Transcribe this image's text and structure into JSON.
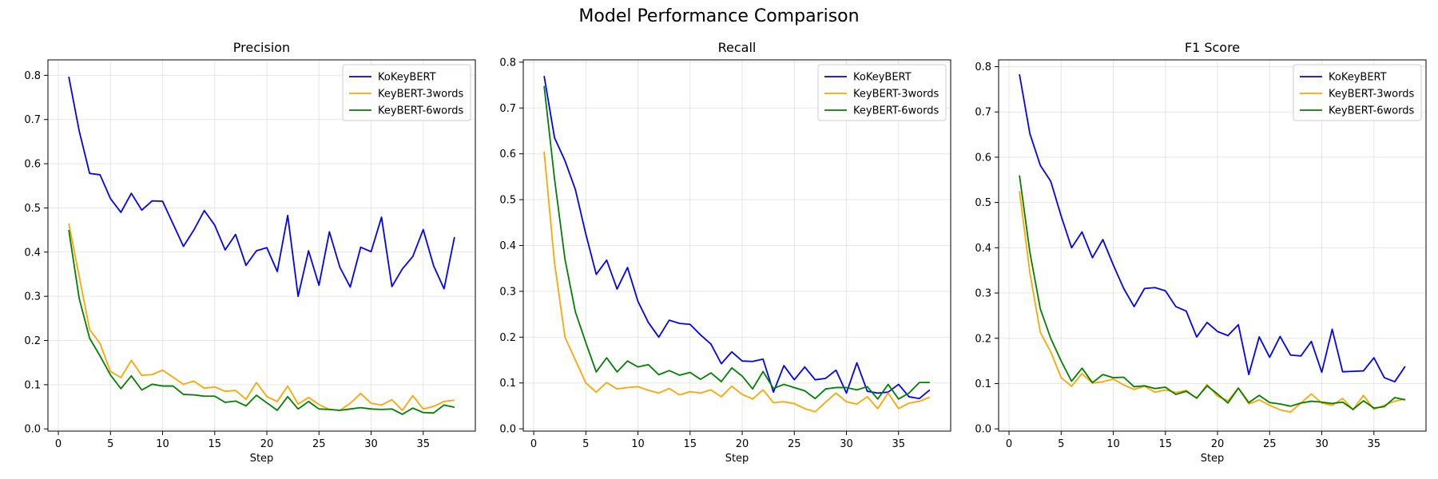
{
  "figure": {
    "title": "Model Performance Comparison"
  },
  "chart_data": [
    {
      "type": "line",
      "title": "Precision",
      "xlabel": "Step",
      "ylabel": "",
      "xlim": [
        -1,
        40
      ],
      "ylim": [
        -0.005,
        0.835
      ],
      "xticks": [
        0,
        5,
        10,
        15,
        20,
        25,
        30,
        35
      ],
      "yticks": [
        0.0,
        0.1,
        0.2,
        0.3,
        0.4,
        0.5,
        0.6,
        0.7,
        0.8
      ],
      "grid": true,
      "legend": "top-right",
      "x": [
        1,
        2,
        3,
        4,
        5,
        6,
        7,
        8,
        9,
        10,
        11,
        12,
        13,
        14,
        15,
        16,
        17,
        18,
        19,
        20,
        21,
        22,
        23,
        24,
        25,
        26,
        27,
        28,
        29,
        30,
        31,
        32,
        33,
        34,
        35,
        36,
        37,
        38
      ],
      "series": [
        {
          "name": "KoKeyBERT",
          "color": "#0000ff",
          "values": [
            0.797,
            0.674,
            0.578,
            0.575,
            0.521,
            0.49,
            0.533,
            0.495,
            0.516,
            0.515,
            0.464,
            0.413,
            0.45,
            0.494,
            0.461,
            0.405,
            0.44,
            0.37,
            0.403,
            0.41,
            0.356,
            0.483,
            0.3,
            0.403,
            0.325,
            0.446,
            0.366,
            0.321,
            0.411,
            0.401,
            0.479,
            0.322,
            0.362,
            0.39,
            0.451,
            0.369,
            0.317,
            0.434
          ]
        },
        {
          "name": "KeyBERT-3words",
          "color": "#ffa500",
          "values": [
            0.465,
            0.345,
            0.225,
            0.193,
            0.13,
            0.116,
            0.155,
            0.121,
            0.123,
            0.133,
            0.117,
            0.101,
            0.108,
            0.092,
            0.095,
            0.085,
            0.087,
            0.067,
            0.105,
            0.073,
            0.062,
            0.097,
            0.056,
            0.071,
            0.055,
            0.044,
            0.042,
            0.058,
            0.08,
            0.058,
            0.054,
            0.066,
            0.042,
            0.075,
            0.045,
            0.051,
            0.062,
            0.065
          ]
        },
        {
          "name": "KeyBERT-6words",
          "color": "#008000",
          "values": [
            0.45,
            0.295,
            0.205,
            0.165,
            0.122,
            0.091,
            0.12,
            0.088,
            0.101,
            0.097,
            0.097,
            0.078,
            0.077,
            0.074,
            0.074,
            0.06,
            0.063,
            0.052,
            0.076,
            0.059,
            0.042,
            0.073,
            0.045,
            0.062,
            0.045,
            0.044,
            0.042,
            0.045,
            0.048,
            0.045,
            0.044,
            0.045,
            0.033,
            0.047,
            0.037,
            0.036,
            0.054,
            0.049
          ]
        }
      ]
    },
    {
      "type": "line",
      "title": "Recall",
      "xlabel": "Step",
      "ylabel": "",
      "xlim": [
        -1,
        40
      ],
      "ylim": [
        -0.005,
        0.805
      ],
      "xticks": [
        0,
        5,
        10,
        15,
        20,
        25,
        30,
        35
      ],
      "yticks": [
        0.0,
        0.1,
        0.2,
        0.3,
        0.4,
        0.5,
        0.6,
        0.7,
        0.8
      ],
      "grid": true,
      "legend": "top-right",
      "x": [
        1,
        2,
        3,
        4,
        5,
        6,
        7,
        8,
        9,
        10,
        11,
        12,
        13,
        14,
        15,
        16,
        17,
        18,
        19,
        20,
        21,
        22,
        23,
        24,
        25,
        26,
        27,
        28,
        29,
        30,
        31,
        32,
        33,
        34,
        35,
        36,
        37,
        38
      ],
      "series": [
        {
          "name": "KoKeyBERT",
          "color": "#0000ff",
          "values": [
            0.77,
            0.635,
            0.585,
            0.522,
            0.425,
            0.337,
            0.368,
            0.305,
            0.352,
            0.278,
            0.232,
            0.2,
            0.237,
            0.23,
            0.228,
            0.205,
            0.185,
            0.142,
            0.168,
            0.148,
            0.147,
            0.152,
            0.08,
            0.138,
            0.107,
            0.135,
            0.107,
            0.11,
            0.128,
            0.078,
            0.144,
            0.082,
            0.078,
            0.08,
            0.097,
            0.07,
            0.066,
            0.085
          ]
        },
        {
          "name": "KeyBERT-3words",
          "color": "#ffa500",
          "values": [
            0.605,
            0.362,
            0.2,
            0.15,
            0.1,
            0.08,
            0.101,
            0.087,
            0.09,
            0.092,
            0.084,
            0.078,
            0.088,
            0.074,
            0.081,
            0.078,
            0.085,
            0.07,
            0.093,
            0.075,
            0.065,
            0.085,
            0.057,
            0.059,
            0.055,
            0.044,
            0.037,
            0.058,
            0.078,
            0.059,
            0.054,
            0.07,
            0.044,
            0.078,
            0.044,
            0.056,
            0.06,
            0.069
          ]
        },
        {
          "name": "KeyBERT-6words",
          "color": "#008000",
          "values": [
            0.748,
            0.545,
            0.37,
            0.255,
            0.188,
            0.124,
            0.155,
            0.124,
            0.148,
            0.135,
            0.14,
            0.118,
            0.127,
            0.117,
            0.123,
            0.108,
            0.122,
            0.103,
            0.133,
            0.115,
            0.087,
            0.125,
            0.088,
            0.097,
            0.09,
            0.083,
            0.066,
            0.087,
            0.09,
            0.09,
            0.085,
            0.092,
            0.065,
            0.097,
            0.065,
            0.078,
            0.101,
            0.101
          ]
        }
      ]
    },
    {
      "type": "line",
      "title": "F1 Score",
      "xlabel": "Step",
      "ylabel": "",
      "xlim": [
        -1,
        40
      ],
      "ylim": [
        -0.005,
        0.815
      ],
      "xticks": [
        0,
        5,
        10,
        15,
        20,
        25,
        30,
        35
      ],
      "yticks": [
        0.0,
        0.1,
        0.2,
        0.3,
        0.4,
        0.5,
        0.6,
        0.7,
        0.8
      ],
      "grid": true,
      "legend": "top-right",
      "x": [
        1,
        2,
        3,
        4,
        5,
        6,
        7,
        8,
        9,
        10,
        11,
        12,
        13,
        14,
        15,
        16,
        17,
        18,
        19,
        20,
        21,
        22,
        23,
        24,
        25,
        26,
        27,
        28,
        29,
        30,
        31,
        32,
        33,
        34,
        35,
        36,
        37,
        38
      ],
      "series": [
        {
          "name": "KoKeyBERT",
          "color": "#0000ff",
          "values": [
            0.783,
            0.652,
            0.582,
            0.547,
            0.47,
            0.4,
            0.435,
            0.378,
            0.418,
            0.362,
            0.31,
            0.27,
            0.31,
            0.312,
            0.305,
            0.27,
            0.26,
            0.203,
            0.235,
            0.215,
            0.206,
            0.23,
            0.12,
            0.203,
            0.158,
            0.204,
            0.163,
            0.161,
            0.193,
            0.125,
            0.22,
            0.126,
            0.127,
            0.128,
            0.157,
            0.113,
            0.104,
            0.138
          ]
        },
        {
          "name": "KeyBERT-3words",
          "color": "#ffa500",
          "values": [
            0.525,
            0.345,
            0.213,
            0.17,
            0.113,
            0.094,
            0.122,
            0.101,
            0.104,
            0.11,
            0.097,
            0.087,
            0.094,
            0.081,
            0.086,
            0.08,
            0.085,
            0.067,
            0.098,
            0.072,
            0.062,
            0.09,
            0.055,
            0.064,
            0.052,
            0.042,
            0.037,
            0.057,
            0.077,
            0.057,
            0.052,
            0.067,
            0.042,
            0.074,
            0.043,
            0.052,
            0.061,
            0.066
          ]
        },
        {
          "name": "KeyBERT-6words",
          "color": "#008000",
          "values": [
            0.56,
            0.39,
            0.265,
            0.2,
            0.15,
            0.105,
            0.134,
            0.102,
            0.12,
            0.113,
            0.114,
            0.093,
            0.095,
            0.089,
            0.092,
            0.076,
            0.083,
            0.068,
            0.095,
            0.077,
            0.057,
            0.09,
            0.058,
            0.074,
            0.058,
            0.055,
            0.05,
            0.057,
            0.061,
            0.059,
            0.056,
            0.059,
            0.043,
            0.062,
            0.046,
            0.049,
            0.069,
            0.064
          ]
        }
      ]
    }
  ]
}
